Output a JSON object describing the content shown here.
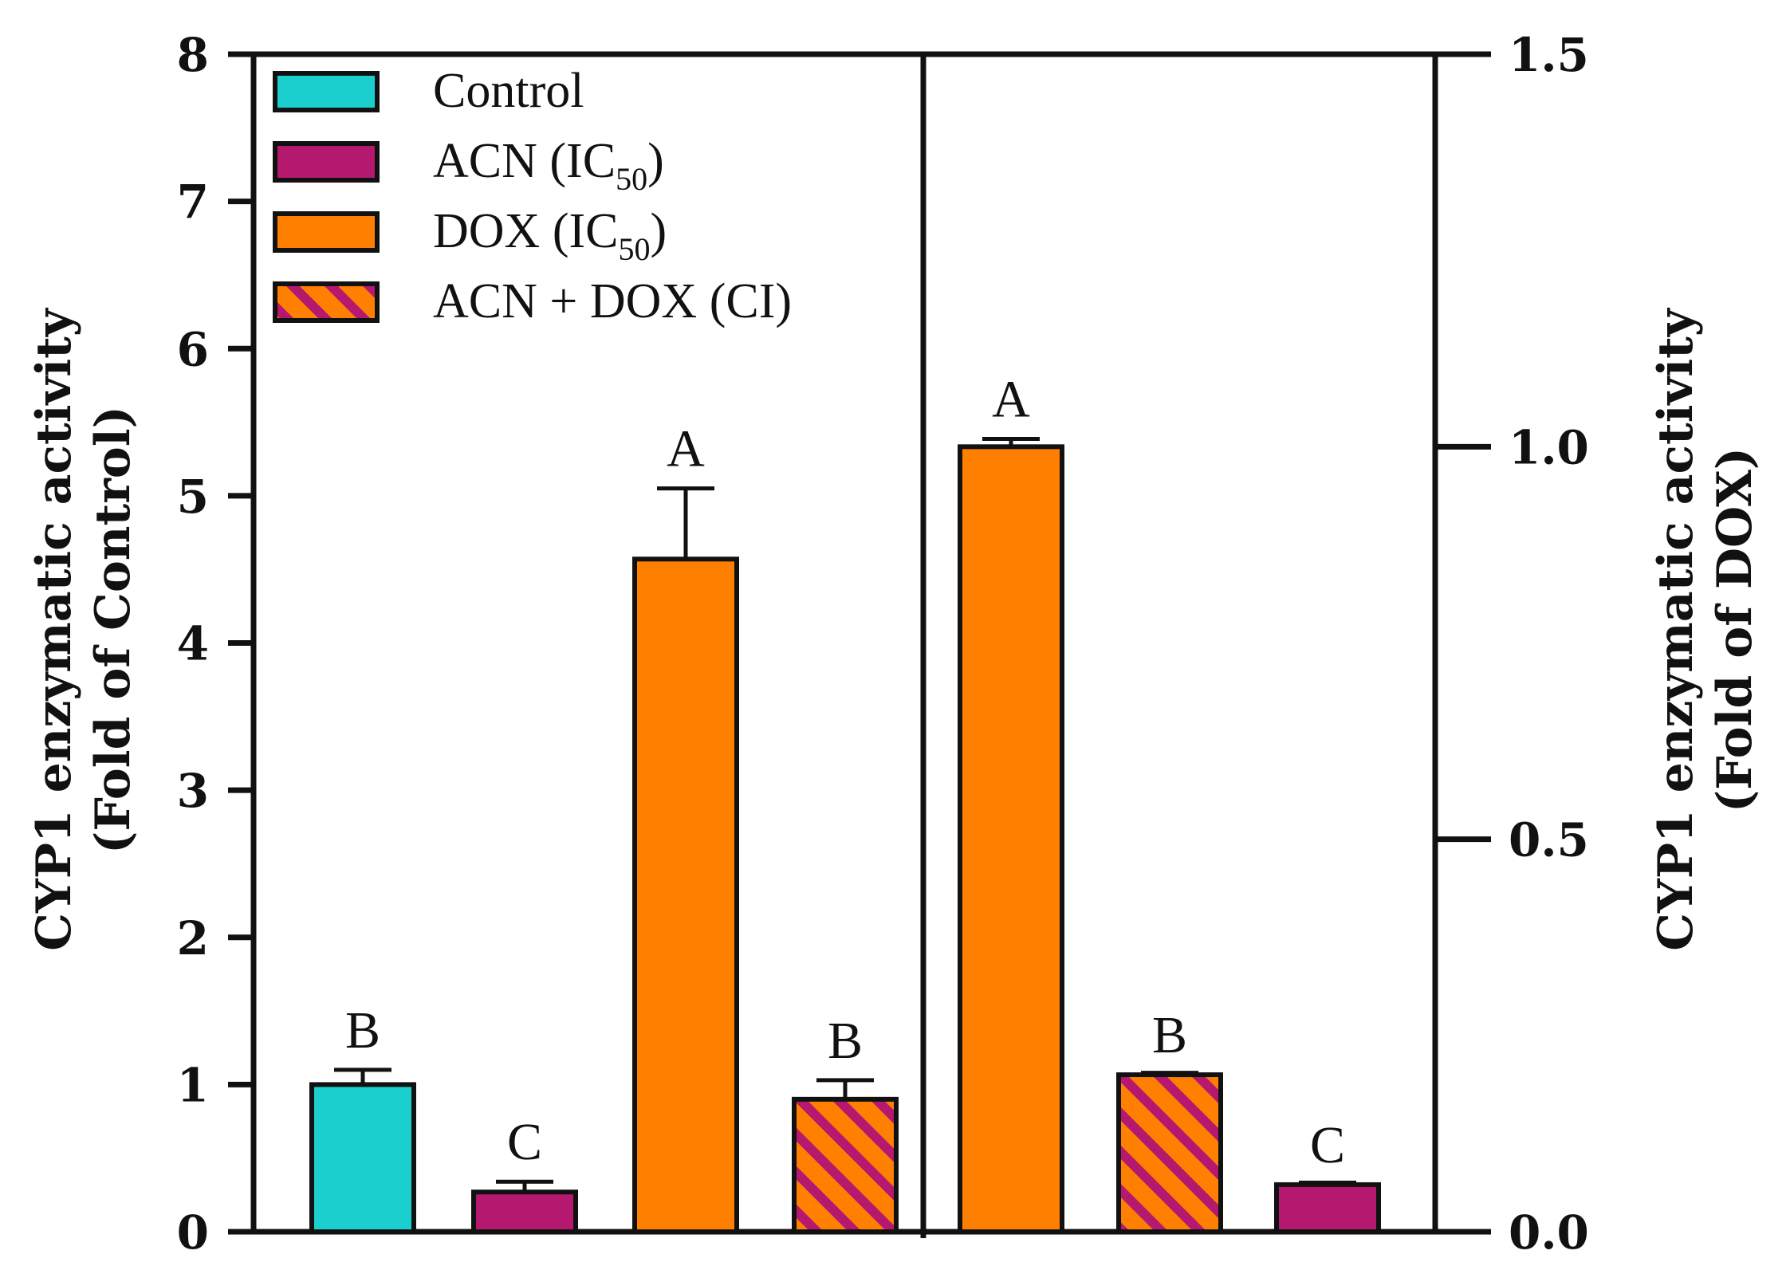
{
  "chart_data": {
    "type": "bar",
    "title": "",
    "colors": {
      "control": "#1ccfcf",
      "acn": "#b5186f",
      "dox": "#ff8000",
      "stripe_a": "#b5186f",
      "stripe_b": "#ff8000",
      "outline": "#111111"
    },
    "left_panel": {
      "ylabel": [
        "CYP1 enzymatic activity",
        "(Fold of Control)"
      ],
      "ylim": [
        0,
        8
      ],
      "yticks": [
        0,
        1,
        2,
        3,
        4,
        5,
        6,
        7,
        8
      ],
      "bars": [
        {
          "name": "Control",
          "value": 1.0,
          "error": 0.1,
          "letter": "B",
          "fill": "control"
        },
        {
          "name": "ACN (IC50)",
          "value": 0.27,
          "error": 0.07,
          "letter": "C",
          "fill": "acn"
        },
        {
          "name": "DOX (IC50)",
          "value": 4.57,
          "error": 0.48,
          "letter": "A",
          "fill": "dox"
        },
        {
          "name": "ACN + DOX (CI)",
          "value": 0.9,
          "error": 0.13,
          "letter": "B",
          "fill": "stripe"
        }
      ]
    },
    "right_panel": {
      "ylabel": [
        "CYP1 enzymatic activity",
        "(Fold of DOX)"
      ],
      "ylim": [
        0,
        1.5
      ],
      "yticks": [
        "0.0",
        "0.5",
        "1.0",
        "1.5"
      ],
      "bars": [
        {
          "name": "DOX (IC50)",
          "value": 1.0,
          "error": 0.01,
          "letter": "A",
          "fill": "dox"
        },
        {
          "name": "ACN + DOX (CI)",
          "value": 0.2,
          "error": 0.0,
          "letter": "B",
          "fill": "stripe"
        },
        {
          "name": "ACN (IC50)",
          "value": 0.06,
          "error": 0.0,
          "letter": "C",
          "fill": "acn"
        }
      ]
    },
    "legend": {
      "position": "top-left",
      "entries": [
        {
          "label": "Control",
          "sub": "",
          "suffix": "",
          "fill": "control"
        },
        {
          "label": "ACN (IC",
          "sub": "50",
          "suffix": ")",
          "fill": "acn"
        },
        {
          "label": "DOX (IC",
          "sub": "50",
          "suffix": ")",
          "fill": "dox"
        },
        {
          "label": "ACN + DOX (CI)",
          "sub": "",
          "suffix": "",
          "fill": "stripe"
        }
      ]
    }
  }
}
